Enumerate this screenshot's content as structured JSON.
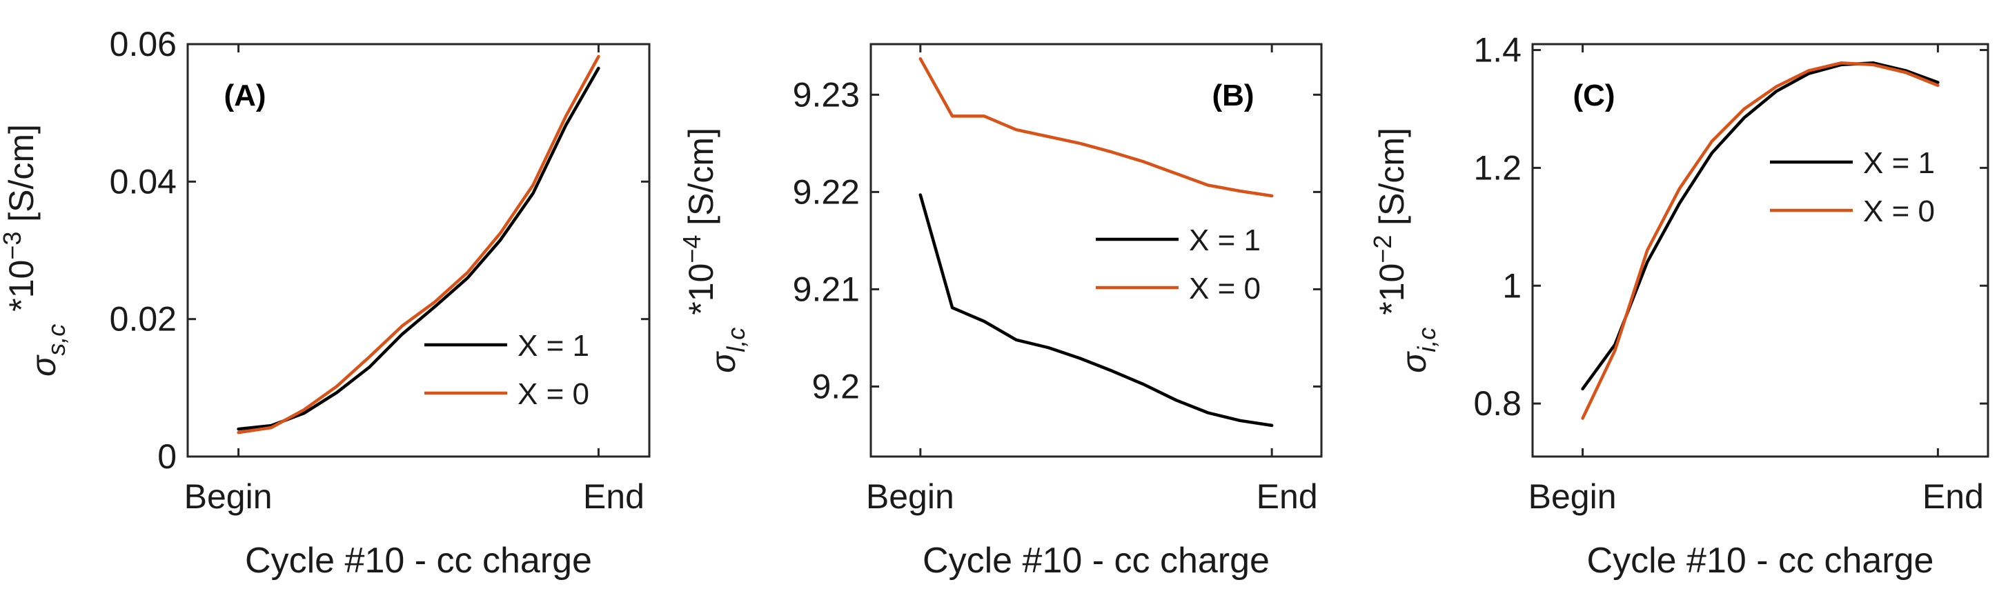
{
  "colors": {
    "series_x1": "#000000",
    "series_x0": "#D95319",
    "axis": "#262626"
  },
  "chart_data": [
    {
      "type": "line",
      "panel_label": "(A)",
      "xlabel": "Cycle #10 - cc charge",
      "x_tick_labels": [
        "Begin",
        "End"
      ],
      "ylabel": {
        "symbol": "σ",
        "subscript": "s,c",
        "factor": "*10",
        "exponent": "−3",
        "unit": " [S/cm]"
      },
      "ylim": [
        0,
        0.06
      ],
      "y_ticks": [
        0,
        0.02,
        0.04,
        0.06
      ],
      "y_tick_labels": [
        "0",
        "0.02",
        "0.04",
        "0.06"
      ],
      "legend_position": "bottom-right",
      "series": [
        {
          "name": "X = 1",
          "values": [
            0.004,
            0.0045,
            0.0063,
            0.0093,
            0.013,
            0.0178,
            0.0218,
            0.026,
            0.0315,
            0.0383,
            0.0482,
            0.0565
          ]
        },
        {
          "name": "X = 0",
          "values": [
            0.0035,
            0.0042,
            0.0068,
            0.0102,
            0.0145,
            0.019,
            0.0225,
            0.0268,
            0.0325,
            0.0395,
            0.0495,
            0.0582
          ]
        }
      ]
    },
    {
      "type": "line",
      "panel_label": "(B)",
      "xlabel": "Cycle #10 - cc charge",
      "x_tick_labels": [
        "Begin",
        "End"
      ],
      "ylabel": {
        "symbol": "σ",
        "subscript": "l,c",
        "factor": "*10",
        "exponent": "−4",
        "unit": " [S/cm]"
      },
      "ylim": [
        9.1928,
        9.2352
      ],
      "y_ticks": [
        9.2,
        9.21,
        9.22,
        9.23
      ],
      "y_tick_labels": [
        "9.2",
        "9.21",
        "9.22",
        "9.23"
      ],
      "legend_position": "middle-right",
      "series": [
        {
          "name": "X = 1",
          "values": [
            9.2197,
            9.2081,
            9.2067,
            9.2048,
            9.204,
            9.2029,
            9.2016,
            9.2002,
            9.1986,
            9.1973,
            9.1965,
            9.196
          ]
        },
        {
          "name": "X = 0",
          "values": [
            9.2337,
            9.2278,
            9.2278,
            9.2264,
            9.2257,
            9.225,
            9.2241,
            9.2231,
            9.2219,
            9.2207,
            9.2201,
            9.2196
          ]
        }
      ]
    },
    {
      "type": "line",
      "panel_label": "(C)",
      "xlabel": "Cycle #10 - cc charge",
      "x_tick_labels": [
        "Begin",
        "End"
      ],
      "ylabel": {
        "symbol": "σ",
        "subscript": "i,c",
        "factor": "*10",
        "exponent": "−2",
        "unit": " [S/cm]"
      },
      "ylim": [
        0.71,
        1.41
      ],
      "y_ticks": [
        0.8,
        1.0,
        1.2,
        1.4
      ],
      "y_tick_labels": [
        "0.8",
        "1",
        "1.2",
        "1.4"
      ],
      "legend_position": "top-right",
      "series": [
        {
          "name": "X = 1",
          "values": [
            0.825,
            0.9,
            1.04,
            1.14,
            1.225,
            1.285,
            1.33,
            1.36,
            1.375,
            1.378,
            1.365,
            1.345
          ]
        },
        {
          "name": "X = 0",
          "values": [
            0.775,
            0.89,
            1.06,
            1.165,
            1.245,
            1.3,
            1.338,
            1.365,
            1.378,
            1.375,
            1.362,
            1.34
          ]
        }
      ]
    }
  ]
}
